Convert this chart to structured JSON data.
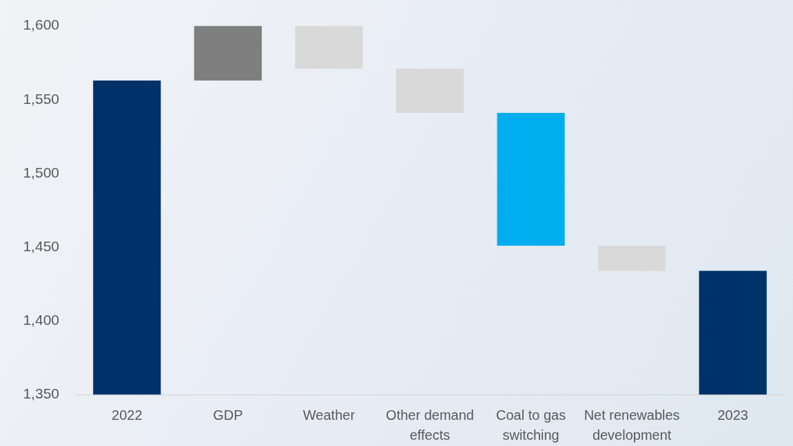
{
  "chart_data": {
    "type": "bar",
    "categories": [
      "2022",
      "GDP",
      "Weather",
      "Other demand effects",
      "Coal to gas switching",
      "Net renewables development",
      "2023"
    ],
    "values": [
      1563,
      37,
      -29,
      -30,
      -90,
      -17,
      1434
    ],
    "base": [
      null,
      1563,
      1600,
      1571,
      1541,
      1451,
      null
    ],
    "colors": [
      "#00326a",
      "#7f7f7f",
      "#d9d9d9",
      "#d9d9d9",
      "#00aeef",
      "#d9d9d9",
      "#00326a"
    ],
    "ylim": [
      1350,
      1600
    ],
    "yticks": [
      {
        "value": 1350,
        "label": "1,350"
      },
      {
        "value": 1400,
        "label": "1,400"
      },
      {
        "value": 1450,
        "label": "1,450"
      },
      {
        "value": 1500,
        "label": "1,500"
      },
      {
        "value": 1550,
        "label": "1,550"
      },
      {
        "value": 1600,
        "label": "1,600"
      }
    ]
  }
}
